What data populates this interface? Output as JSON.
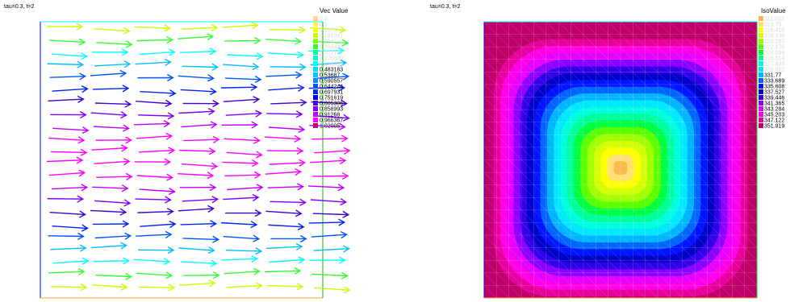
{
  "left_panel": {
    "title": "tau=0.3, t=2"
  },
  "right_panel": {
    "title": "tau=0.3, t=2"
  },
  "chart_data": [
    {
      "type": "vector-field",
      "title": "tau=0.3, t=2",
      "legend_title": "Vec Value",
      "legend_position": "top-right",
      "domain": {
        "x": [
          0,
          1
        ],
        "y": [
          0,
          1
        ]
      },
      "grid_resolution": 20,
      "direction": "mostly +x (rightward) with small vertical variation",
      "color_levels": [
        {
          "value": "0.0",
          "color": "#ffd4a0"
        },
        {
          "value": "0.1",
          "color": "#ffef60"
        },
        {
          "value": "0.107374",
          "color": "#f4ff00"
        },
        {
          "value": "0.161061",
          "color": "#c8ff00"
        },
        {
          "value": "0.214748",
          "color": "#8aff00"
        },
        {
          "value": "0.268435",
          "color": "#33ff33"
        },
        {
          "value": "0.322122",
          "color": "#00ff99"
        },
        {
          "value": "0.375809",
          "color": "#00ffcc"
        },
        {
          "value": "0.429496",
          "color": "#00ffff"
        },
        {
          "value": "0.483183",
          "color": "#00e0ff"
        },
        {
          "value": "0.53687",
          "color": "#00bfff"
        },
        {
          "value": "0.590557",
          "color": "#0090ff"
        },
        {
          "value": "0.644244",
          "color": "#0055ff"
        },
        {
          "value": "0.697931",
          "color": "#0022ff"
        },
        {
          "value": "0.751619",
          "color": "#0000e0"
        },
        {
          "value": "0.805306",
          "color": "#4000d0"
        },
        {
          "value": "0.858993",
          "color": "#8000ff"
        },
        {
          "value": "0.91268",
          "color": "#c000ff"
        },
        {
          "value": "0.966367",
          "color": "#ff00ff"
        },
        {
          "value": "1.02005",
          "color": "#c0006a"
        }
      ]
    },
    {
      "type": "heatmap",
      "title": "tau=0.3, t=2",
      "legend_title": "IsoValue",
      "legend_position": "top-right",
      "domain": {
        "x": [
          0,
          1
        ],
        "y": [
          0,
          1
        ]
      },
      "field": "min at center, max at edges (square-ish contours)",
      "center_value": 311.832,
      "edge_value": 351.919,
      "color_levels": [
        {
          "value": "311.832",
          "color": "#f8b84e"
        },
        {
          "value": "313.75",
          "color": "#ffe070"
        },
        {
          "value": "316.418",
          "color": "#ffff00"
        },
        {
          "value": "318.336",
          "color": "#d4ff00"
        },
        {
          "value": "320.257",
          "color": "#a0ff00"
        },
        {
          "value": "322.176",
          "color": "#5aff00"
        },
        {
          "value": "324.095",
          "color": "#00ff40"
        },
        {
          "value": "326.014",
          "color": "#00ff9a"
        },
        {
          "value": "327.933",
          "color": "#00ffdd"
        },
        {
          "value": "329.852",
          "color": "#00e8ff"
        },
        {
          "value": "331.77",
          "color": "#00b4ff"
        },
        {
          "value": "333.689",
          "color": "#0064ff"
        },
        {
          "value": "335.608",
          "color": "#0014ff"
        },
        {
          "value": "337.527",
          "color": "#0000c8"
        },
        {
          "value": "339.446",
          "color": "#3200e6"
        },
        {
          "value": "341.365",
          "color": "#8c00ff"
        },
        {
          "value": "343.284",
          "color": "#e600ff"
        },
        {
          "value": "345.203",
          "color": "#ff00e6"
        },
        {
          "value": "347.122",
          "color": "#e6009c"
        },
        {
          "value": "351.919",
          "color": "#c0006a"
        }
      ]
    }
  ]
}
